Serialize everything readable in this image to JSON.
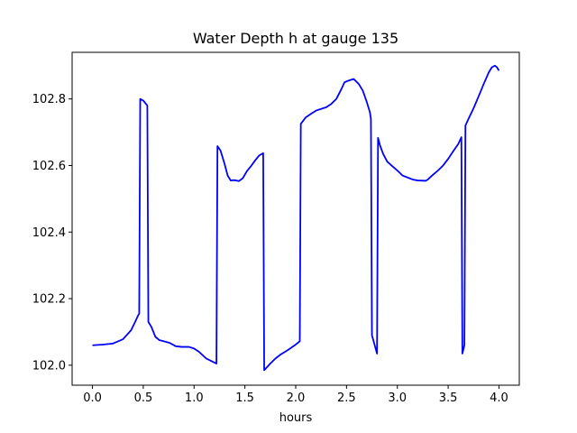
{
  "chart_data": {
    "type": "line",
    "title": "Water Depth h at gauge 135",
    "xlabel": "hours",
    "ylabel": "",
    "xlim": [
      -0.2,
      4.2
    ],
    "ylim": [
      101.94,
      102.94
    ],
    "xticks": [
      0.0,
      0.5,
      1.0,
      1.5,
      2.0,
      2.5,
      3.0,
      3.5,
      4.0
    ],
    "xtick_labels": [
      "0.0",
      "0.5",
      "1.0",
      "1.5",
      "2.0",
      "2.5",
      "3.0",
      "3.5",
      "4.0"
    ],
    "yticks": [
      102.0,
      102.2,
      102.4,
      102.6,
      102.8
    ],
    "ytick_labels": [
      "102.0",
      "102.2",
      "102.4",
      "102.6",
      "102.8"
    ],
    "grid": false,
    "series": [
      {
        "color": "#0000ff",
        "x": [
          0.0,
          0.1,
          0.2,
          0.3,
          0.38,
          0.42,
          0.45,
          0.46,
          0.47,
          0.5,
          0.54,
          0.55,
          0.58,
          0.62,
          0.66,
          0.7,
          0.76,
          0.82,
          0.88,
          0.95,
          1.0,
          1.05,
          1.12,
          1.2,
          1.22,
          1.23,
          1.26,
          1.3,
          1.33,
          1.36,
          1.4,
          1.44,
          1.48,
          1.52,
          1.56,
          1.6,
          1.64,
          1.68,
          1.69,
          1.75,
          1.8,
          1.85,
          1.92,
          2.0,
          2.04,
          2.05,
          2.1,
          2.15,
          2.2,
          2.25,
          2.3,
          2.35,
          2.4,
          2.45,
          2.48,
          2.52,
          2.57,
          2.62,
          2.66,
          2.7,
          2.73,
          2.74,
          2.75,
          2.8,
          2.81,
          2.83,
          2.86,
          2.9,
          2.95,
          3.0,
          3.05,
          3.1,
          3.15,
          3.2,
          3.28,
          3.3,
          3.35,
          3.4,
          3.45,
          3.5,
          3.55,
          3.6,
          3.63,
          3.64,
          3.66,
          3.67,
          3.7,
          3.75,
          3.8,
          3.85,
          3.9,
          3.93,
          3.96,
          3.98,
          4.0
        ],
        "y": [
          102.06,
          102.062,
          102.065,
          102.078,
          102.105,
          102.13,
          102.15,
          102.155,
          102.8,
          102.795,
          102.78,
          102.13,
          102.115,
          102.085,
          102.075,
          102.072,
          102.067,
          102.057,
          102.055,
          102.055,
          102.05,
          102.04,
          102.02,
          102.008,
          102.005,
          102.658,
          102.645,
          102.605,
          102.57,
          102.555,
          102.556,
          102.553,
          102.562,
          102.583,
          102.598,
          102.615,
          102.63,
          102.637,
          101.985,
          102.005,
          102.02,
          102.032,
          102.045,
          102.062,
          102.072,
          102.725,
          102.745,
          102.755,
          102.765,
          102.77,
          102.775,
          102.785,
          102.8,
          102.83,
          102.85,
          102.855,
          102.86,
          102.845,
          102.825,
          102.79,
          102.76,
          102.74,
          102.09,
          102.035,
          102.683,
          102.66,
          102.635,
          102.612,
          102.598,
          102.585,
          102.57,
          102.564,
          102.558,
          102.555,
          102.554,
          102.558,
          102.572,
          102.585,
          102.6,
          102.62,
          102.643,
          102.665,
          102.685,
          102.035,
          102.06,
          102.72,
          102.74,
          102.772,
          102.808,
          102.845,
          102.88,
          102.895,
          102.9,
          102.895,
          102.885
        ]
      }
    ]
  }
}
